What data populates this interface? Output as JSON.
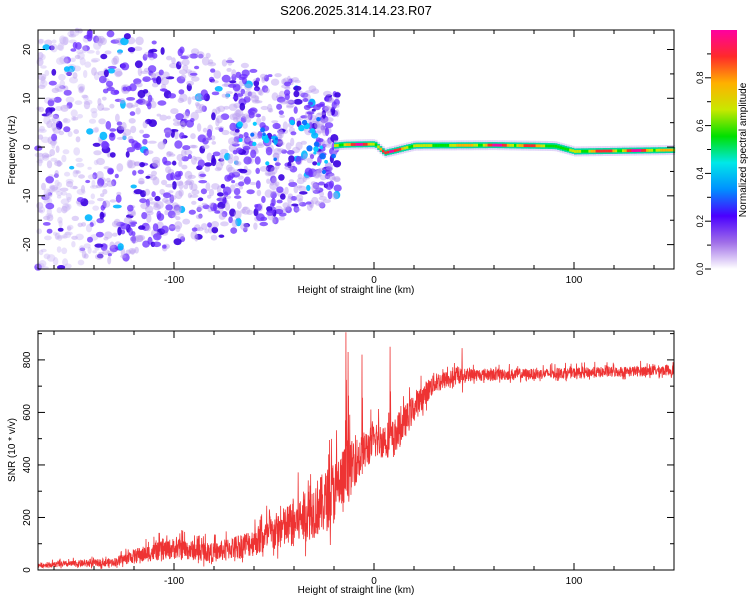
{
  "title": "S206.2025.314.14.23.R07",
  "chart_data": [
    {
      "type": "heatmap",
      "name": "spectrogram",
      "xlabel": "Height of straight line (km)",
      "ylabel": "Frequency (Hz)",
      "xlim": [
        -168,
        150
      ],
      "ylim": [
        -25,
        24
      ],
      "xticks": [
        -100,
        0,
        100
      ],
      "xtick_labels": [
        "-100",
        "0",
        "100"
      ],
      "yticks": [
        -20,
        -10,
        0,
        10,
        20
      ],
      "ytick_labels": [
        "-20",
        "-10",
        "0",
        "10",
        "20"
      ],
      "colorbar": {
        "label": "Normalized spectral amplitude",
        "range": [
          0,
          1
        ],
        "ticks": [
          0.0,
          0.2,
          0.4,
          0.6,
          0.8
        ],
        "tick_labels": [
          "0.0",
          "0.2",
          "0.4",
          "0.6",
          "0.8"
        ],
        "colors": [
          "#ffffff",
          "#a06ee8",
          "#4a00ff",
          "#0090ff",
          "#00e8e8",
          "#00e000",
          "#c8e800",
          "#ffb000",
          "#ff2a2a",
          "#ff00a0"
        ]
      },
      "signal_track": [
        {
          "x": -20,
          "freq": 0.3
        },
        {
          "x": -15,
          "freq": 0.5
        },
        {
          "x": 0,
          "freq": 0.6
        },
        {
          "x": 5,
          "freq": -1.2
        },
        {
          "x": 20,
          "freq": 0.3
        },
        {
          "x": 60,
          "freq": 0.4
        },
        {
          "x": 90,
          "freq": 0.2
        },
        {
          "x": 100,
          "freq": -0.9
        },
        {
          "x": 150,
          "freq": -0.6
        }
      ],
      "noise_region": {
        "x_range": [
          -168,
          -18
        ],
        "freq_range": [
          -25,
          24
        ],
        "peak_amplitude": 0.3
      }
    },
    {
      "type": "line",
      "name": "snr",
      "xlabel": "Height of straight line (km)",
      "ylabel": "SNR (10 * v/v)",
      "xlim": [
        -168,
        150
      ],
      "ylim": [
        0,
        910
      ],
      "xticks": [
        -100,
        0,
        100
      ],
      "xtick_labels": [
        "-100",
        "0",
        "100"
      ],
      "yticks": [
        0,
        200,
        400,
        600,
        800
      ],
      "ytick_labels": [
        "0",
        "200",
        "400",
        "600",
        "800"
      ],
      "color": "#ee3333",
      "envelope": [
        {
          "x": -168,
          "mean": 15,
          "spread": 20
        },
        {
          "x": -130,
          "mean": 25,
          "spread": 35
        },
        {
          "x": -120,
          "mean": 45,
          "spread": 60
        },
        {
          "x": -100,
          "mean": 70,
          "spread": 90
        },
        {
          "x": -80,
          "mean": 55,
          "spread": 80
        },
        {
          "x": -60,
          "mean": 90,
          "spread": 120
        },
        {
          "x": -40,
          "mean": 150,
          "spread": 200
        },
        {
          "x": -25,
          "mean": 220,
          "spread": 260
        },
        {
          "x": -15,
          "mean": 300,
          "spread": 300
        },
        {
          "x": -10,
          "mean": 380,
          "spread": 200
        },
        {
          "x": 0,
          "mean": 470,
          "spread": 150
        },
        {
          "x": 10,
          "mean": 480,
          "spread": 160
        },
        {
          "x": 20,
          "mean": 600,
          "spread": 120
        },
        {
          "x": 30,
          "mean": 700,
          "spread": 90
        },
        {
          "x": 45,
          "mean": 735,
          "spread": 55
        },
        {
          "x": 80,
          "mean": 740,
          "spread": 45
        },
        {
          "x": 120,
          "mean": 748,
          "spread": 45
        },
        {
          "x": 150,
          "mean": 755,
          "spread": 45
        }
      ],
      "spikes": [
        {
          "x": -14,
          "y": 905
        },
        {
          "x": -13,
          "y": 830
        },
        {
          "x": -6,
          "y": 820
        },
        {
          "x": 8,
          "y": 850
        },
        {
          "x": 44,
          "y": 845
        }
      ]
    }
  ]
}
